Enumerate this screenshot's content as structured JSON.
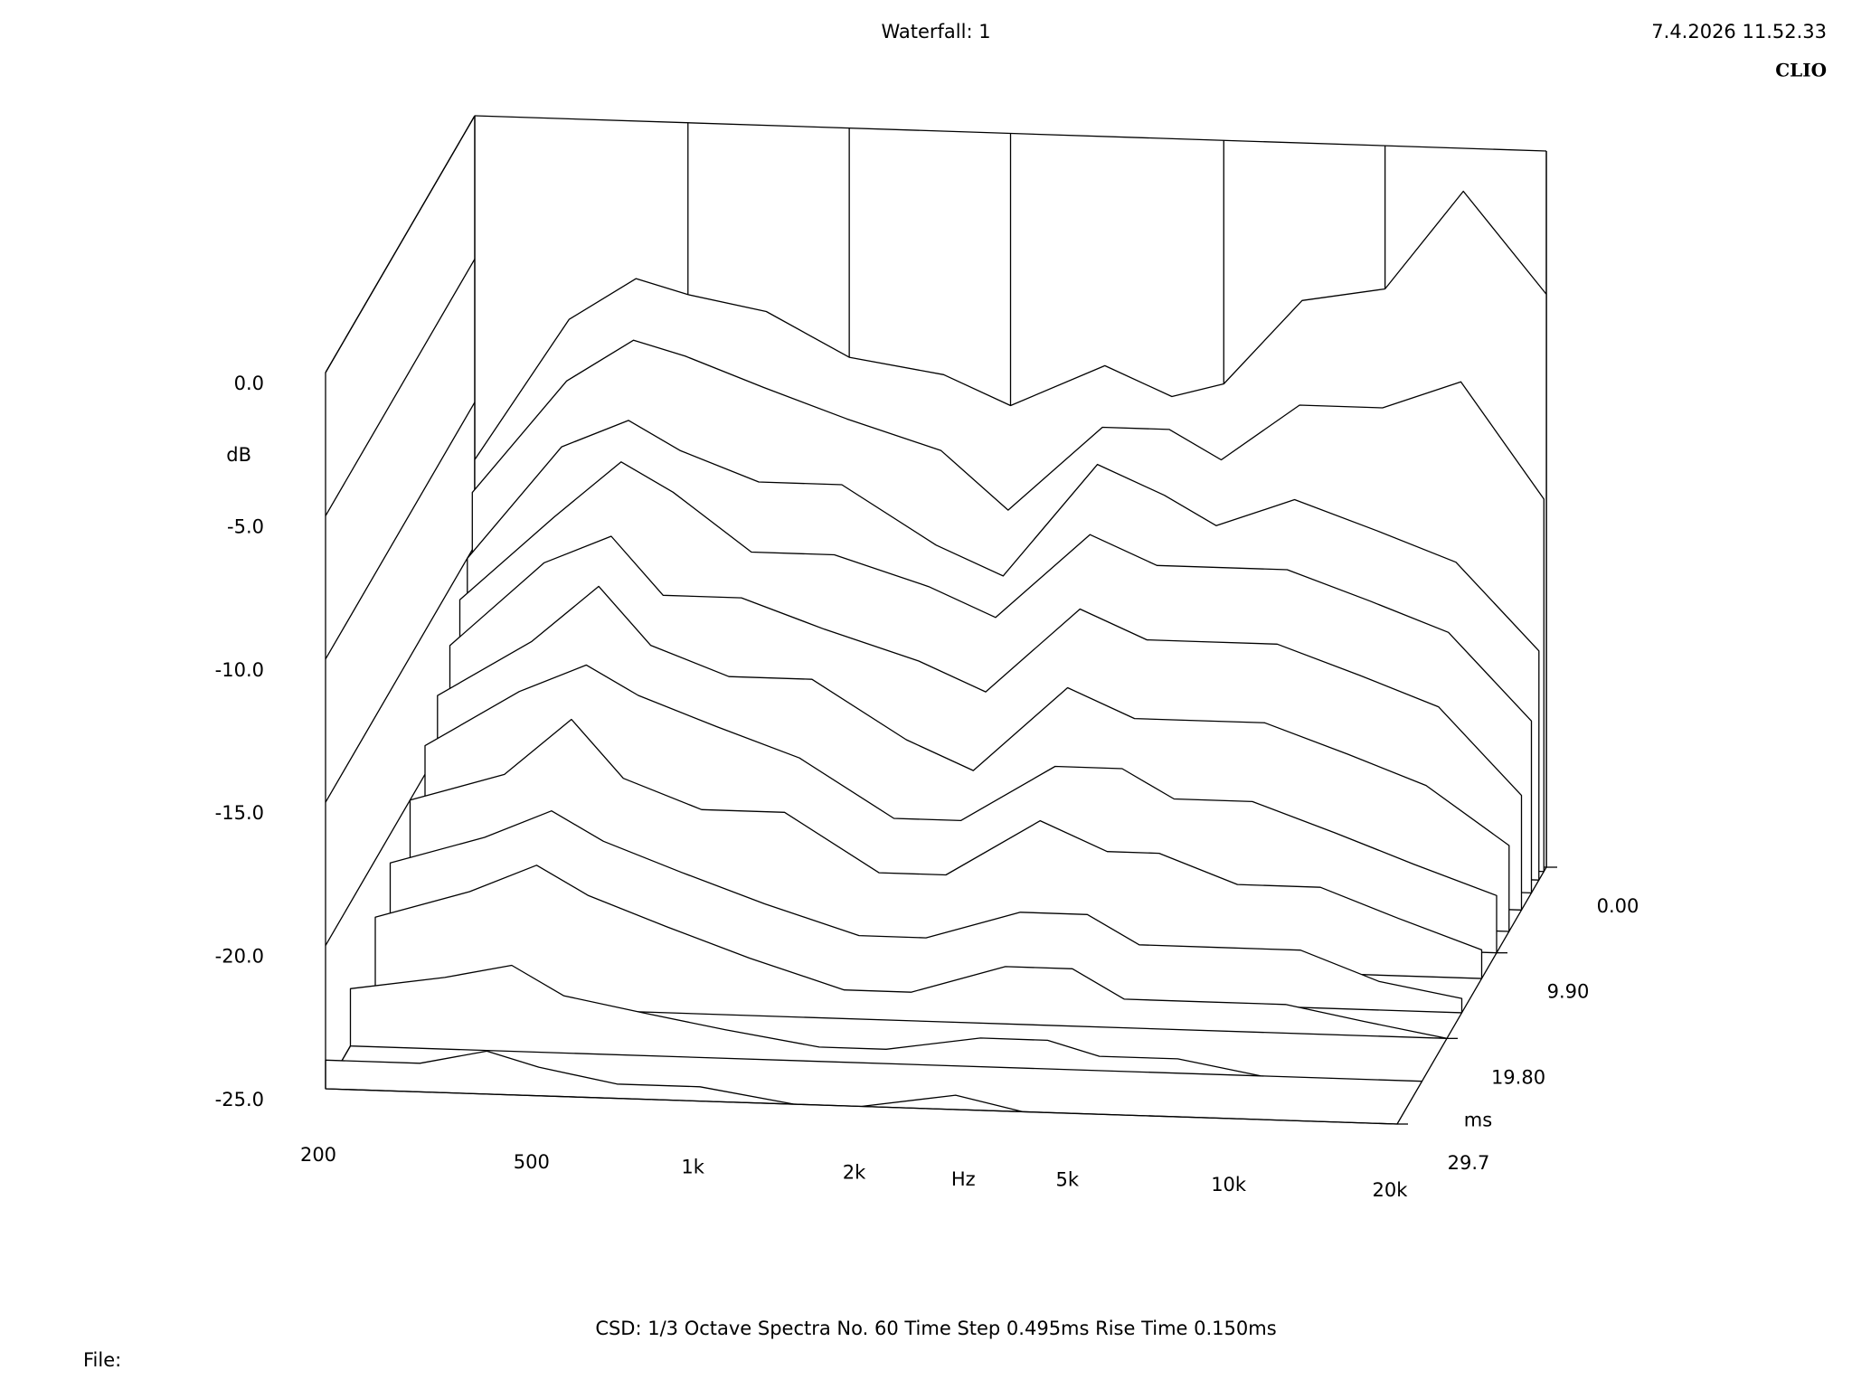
{
  "chart_data": {
    "type": "waterfall",
    "title": "Waterfall: 1",
    "timestamp": "7.4.2026 11.52.33",
    "brand": "CLIO",
    "y_label": "dB",
    "x_label": "Hz",
    "z_label": "ms",
    "footer": "CSD:   1/3 Octave   Spectra No. 60   Time Step 0.495ms   Rise Time 0.150ms",
    "file_label": "File:",
    "x": [
      200,
      300,
      400,
      500,
      700,
      1000,
      1500,
      2000,
      3000,
      4000,
      5000,
      7000,
      10000,
      14000,
      20000
    ],
    "xlim": [
      200,
      20000
    ],
    "xticks": [
      200,
      500,
      {
        "value": 1000,
        "label": "1k"
      },
      {
        "value": 2000,
        "label": "2k"
      },
      {
        "value": 5000,
        "label": "5k"
      },
      {
        "value": 10000,
        "label": "10k"
      },
      {
        "value": 20000,
        "label": "20k"
      }
    ],
    "ylim": [
      -25,
      0
    ],
    "yticks": [
      {
        "value": -25,
        "label": "-25.0"
      },
      {
        "value": -20,
        "label": "-20.0"
      },
      {
        "value": -15,
        "label": "-15.0"
      },
      {
        "value": -10,
        "label": "-10.0"
      },
      {
        "value": -5,
        "label": "-5.0"
      },
      {
        "value": 0,
        "label": "0.0"
      }
    ],
    "zlim": [
      0,
      29.7
    ],
    "zticks": [
      {
        "value": 0,
        "label": "0.00"
      },
      {
        "value": 9.9,
        "label": "9.90"
      },
      {
        "value": 19.8,
        "label": "19.80"
      },
      29.7
    ],
    "series": [
      {
        "t": 0,
        "values": [
          -12,
          -7,
          -5.5,
          -6,
          -6.5,
          -8,
          -8.5,
          -9.5,
          -8,
          -9,
          -8.5,
          -5.5,
          -5,
          -1.5,
          -5
        ]
      },
      {
        "t": 0.495,
        "values": [
          -13,
          -9,
          -7.5,
          -8,
          -9,
          -10,
          -11,
          -13,
          -10,
          -10,
          -11,
          -9,
          -9,
          -8,
          -12
        ]
      },
      {
        "t": 1.485,
        "values": [
          -15,
          -11,
          -10,
          -11,
          -12,
          -12,
          -14,
          -15,
          -11,
          -12,
          -13,
          -12,
          -13,
          -14,
          -17
        ]
      },
      {
        "t": 2.97,
        "values": [
          -16,
          -13,
          -11,
          -12,
          -14,
          -14,
          -15,
          -16,
          -13,
          -14,
          -14,
          -14,
          -15,
          -16,
          -19
        ]
      },
      {
        "t": 4.95,
        "values": [
          -17,
          -14,
          -13,
          -15,
          -15,
          -16,
          -17,
          -18,
          -15,
          -16,
          -16,
          -16,
          -17,
          -18,
          -21
        ]
      },
      {
        "t": 7.425,
        "values": [
          -18,
          -16,
          -14,
          -16,
          -17,
          -17,
          -19,
          -20,
          -17,
          -18,
          -18,
          -18,
          -19,
          -20,
          -22
        ]
      },
      {
        "t": 9.9,
        "values": [
          -19,
          -17,
          -16,
          -17,
          -18,
          -19,
          -21,
          -21,
          -19,
          -19,
          -20,
          -20,
          -21,
          -22,
          -23
        ]
      },
      {
        "t": 12.87,
        "values": [
          -20,
          -19,
          -17,
          -19,
          -20,
          -20,
          -22,
          -22,
          -20,
          -21,
          -21,
          -22,
          -22,
          -23,
          -24
        ]
      },
      {
        "t": 16.83,
        "values": [
          -21,
          -20,
          -19,
          -20,
          -21,
          -22,
          -23,
          -23,
          -22,
          -22,
          -23,
          -23,
          -23,
          -24,
          -24.5
        ]
      },
      {
        "t": 19.8,
        "values": [
          -22,
          -21,
          -20,
          -21,
          -22,
          -23,
          -24,
          -24,
          -23,
          -23,
          -24,
          -24,
          -24,
          -24.5,
          -25
        ]
      },
      {
        "t": 24.75,
        "values": [
          -23,
          -22.5,
          -22,
          -23,
          -23.5,
          -24,
          -24.5,
          -24.5,
          -24,
          -24,
          -24.5,
          -24.5,
          -25,
          -25,
          -25
        ]
      },
      {
        "t": 29.7,
        "values": [
          -24,
          -24,
          -23.5,
          -24,
          -24.5,
          -24.5,
          -25,
          -25,
          -24.5,
          -25,
          -25,
          -25,
          -25,
          -25,
          -25
        ]
      }
    ]
  }
}
